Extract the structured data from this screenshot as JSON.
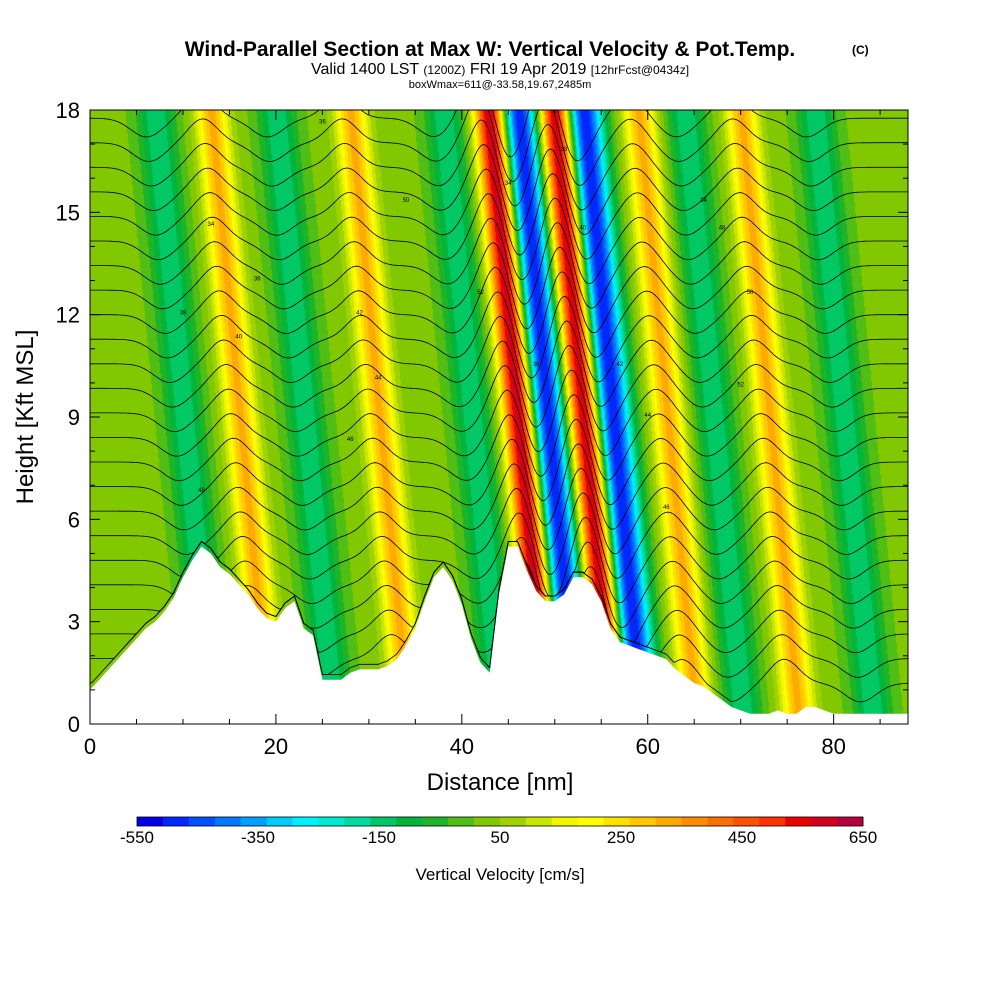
{
  "header": {
    "title": "Wind-Parallel Section at Max W: Vertical Velocity & Pot.Temp.",
    "title_mark": "(C)",
    "subtitle_a": "Valid 1400 LST",
    "subtitle_b": "(1200Z)",
    "subtitle_c": "FRI 19 Apr 2019",
    "subtitle_d": "[12hrFcst@0434z]",
    "subtitle2": "boxWmax=611@-33.58,19.67,2485m"
  },
  "chart_data": {
    "type": "heatmap",
    "title": "Wind-Parallel Section at Max W: Vertical Velocity & Pot.Temp.",
    "xlabel": "Distance [nm]",
    "ylabel": "Height [Kft MSL]",
    "xlim": [
      0,
      88
    ],
    "ylim": [
      0,
      18
    ],
    "x_ticks": [
      "0",
      "20",
      "40",
      "60",
      "80"
    ],
    "x_tick_values": [
      0,
      20,
      40,
      60,
      80
    ],
    "y_ticks": [
      "0",
      "3",
      "6",
      "9",
      "12",
      "15",
      "18"
    ],
    "y_tick_values": [
      0,
      3,
      6,
      9,
      12,
      15,
      18
    ],
    "colorbar": {
      "label": "Vertical Velocity [cm/s]",
      "min": -550,
      "max": 650,
      "step": 50,
      "tick_labels": [
        "-550",
        "-350",
        "-150",
        "50",
        "250",
        "450",
        "650"
      ],
      "tick_values": [
        -550,
        -350,
        -150,
        50,
        250,
        450,
        650
      ],
      "colors": [
        "#0000e6",
        "#0028ff",
        "#0050ff",
        "#0078ff",
        "#00a0ff",
        "#00ccff",
        "#00f0ff",
        "#00ead2",
        "#00dca0",
        "#00c864",
        "#00b43c",
        "#1eb428",
        "#50be14",
        "#82c800",
        "#a0d200",
        "#c8e600",
        "#f0f500",
        "#ffff00",
        "#ffe100",
        "#ffc800",
        "#ffaa00",
        "#ff8c00",
        "#ff6e00",
        "#ff5000",
        "#ff3200",
        "#eb0000",
        "#d2001e",
        "#b4003c"
      ]
    },
    "wave_field": {
      "description_units": "vertical velocity cm/s by distance nm",
      "updraft_axes_nm_at_top": [
        13,
        28,
        43,
        50,
        59,
        70
      ],
      "downdraft_axes_nm_at_top": [
        7,
        20,
        38,
        46,
        53,
        64,
        78
      ],
      "peak_updraft_cms": 611,
      "peak_downdraft_cms": -540
    },
    "terrain_kft": {
      "x_nm": [
        0,
        1,
        2,
        3,
        4,
        5,
        6,
        7,
        8,
        9,
        10,
        11,
        12,
        13,
        14,
        15,
        16,
        17,
        18,
        19,
        20,
        21,
        22,
        23,
        24,
        25,
        26,
        27,
        28,
        29,
        30,
        31,
        32,
        33,
        34,
        35,
        36,
        37,
        38,
        39,
        40,
        41,
        42,
        43,
        44,
        45,
        46,
        47,
        48,
        49,
        50,
        51,
        52,
        53,
        54,
        55,
        56,
        57,
        58,
        59,
        60,
        61,
        62,
        63,
        64,
        65,
        66,
        67,
        68,
        69,
        70,
        71,
        72,
        73,
        74,
        75,
        76,
        77,
        78,
        79,
        80,
        81,
        82,
        83,
        84,
        85,
        86,
        87,
        88
      ],
      "height": [
        1.0,
        1.3,
        1.6,
        1.9,
        2.2,
        2.5,
        2.8,
        3.0,
        3.3,
        3.7,
        4.3,
        4.8,
        5.2,
        5.0,
        4.6,
        4.4,
        4.1,
        3.8,
        3.4,
        3.1,
        3.0,
        3.4,
        3.6,
        2.8,
        2.6,
        1.3,
        1.3,
        1.3,
        1.5,
        1.6,
        1.6,
        1.6,
        1.7,
        1.9,
        2.3,
        2.8,
        3.6,
        4.3,
        4.6,
        4.2,
        3.5,
        2.5,
        1.8,
        1.5,
        3.8,
        5.2,
        5.2,
        4.5,
        3.9,
        3.6,
        3.6,
        3.8,
        4.3,
        4.3,
        4.1,
        3.6,
        2.8,
        2.4,
        2.3,
        2.2,
        2.1,
        2.0,
        1.9,
        1.6,
        1.4,
        1.2,
        1.1,
        0.9,
        0.7,
        0.5,
        0.4,
        0.3,
        0.3,
        0.3,
        0.4,
        0.3,
        0.3,
        0.5,
        0.5,
        0.4,
        0.3,
        0.3,
        0.3,
        0.3,
        0.3,
        0.3,
        0.3,
        0.3,
        0.3
      ]
    },
    "theta_contour_labels_c": [
      "34",
      "36",
      "38",
      "40",
      "42",
      "44",
      "46",
      "48",
      "50",
      "52"
    ],
    "theta_contour_count": 24
  }
}
